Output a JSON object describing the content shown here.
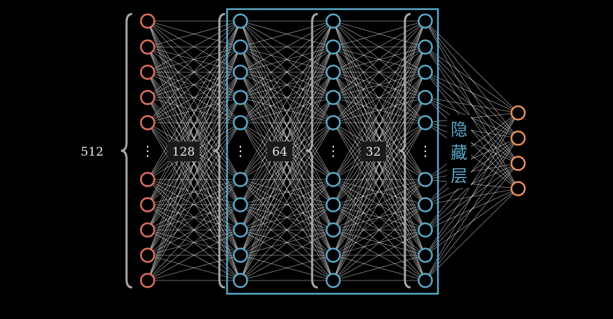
{
  "labels": {
    "input_count": "512",
    "hidden1_count": "128",
    "hidden2_count": "64",
    "hidden3_count": "32",
    "hidden_layer_title": "隐藏层",
    "ellipsis": "⋮"
  },
  "colors": {
    "background": "#000000",
    "input_node": "#e07060",
    "hidden_node": "#5aa9c8",
    "output_node": "#e8915a",
    "edge": "#ffffff",
    "brace": "#a8a8a8",
    "hidden_box": "#5aa9c8",
    "label_text": "#e6e6e6"
  },
  "network": {
    "layers": [
      {
        "name": "input",
        "visible_nodes": 10,
        "has_ellipsis": true
      },
      {
        "name": "hidden-1",
        "visible_nodes": 10,
        "has_ellipsis": true
      },
      {
        "name": "hidden-2",
        "visible_nodes": 10,
        "has_ellipsis": true
      },
      {
        "name": "hidden-3",
        "visible_nodes": 10,
        "has_ellipsis": true
      },
      {
        "name": "output",
        "visible_nodes": 4,
        "has_ellipsis": false
      }
    ]
  }
}
